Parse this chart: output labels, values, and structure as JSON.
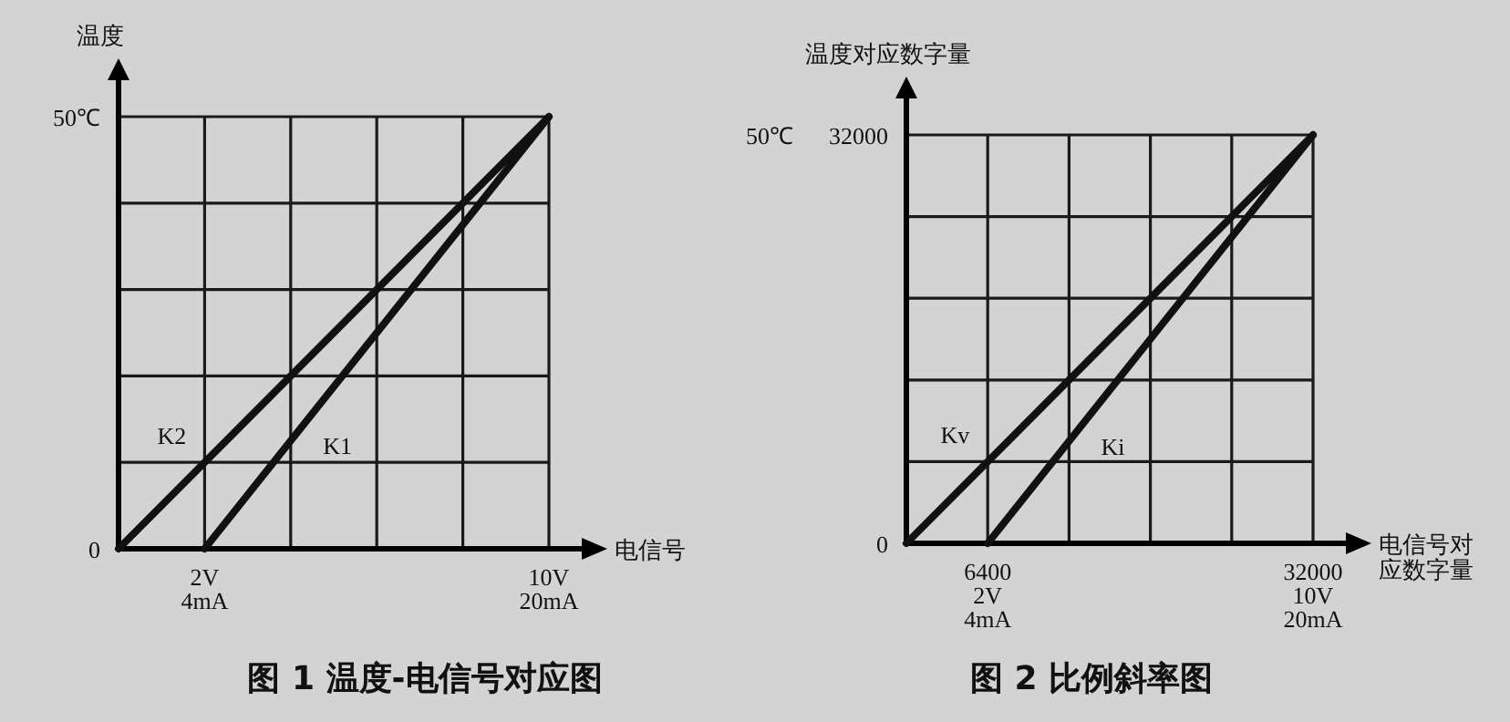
{
  "chart_data": [
    {
      "type": "line",
      "title": "图 1   温度-电信号对应图",
      "xlabel": "电信号",
      "ylabel": "温度",
      "xlim": [
        0,
        10
      ],
      "ylim": [
        0,
        50
      ],
      "xticks": [
        {
          "value": 0,
          "label": null
        },
        {
          "value": 2,
          "label": "2V"
        },
        {
          "value": 4,
          "label": null
        },
        {
          "value": 6,
          "label": null
        },
        {
          "value": 8,
          "label": null
        },
        {
          "value": 10,
          "label": "10V"
        }
      ],
      "x2lim": [
        0,
        20
      ],
      "x2ticks": [
        {
          "value": 4,
          "label": "4mA"
        },
        {
          "value": 20,
          "label": "20mA"
        }
      ],
      "yticks": [
        0,
        {
          "value": 10,
          "label": null
        },
        {
          "value": 20,
          "label": null
        },
        {
          "value": 30,
          "label": null
        },
        {
          "value": 40,
          "label": null
        },
        {
          "value": 50,
          "label": "50℃"
        }
      ],
      "grid": true,
      "line_style": "solid",
      "marker": "none",
      "series": [
        {
          "name": "K1",
          "color": "#111111",
          "x": [
            2,
            10
          ],
          "values": [
            0,
            50
          ]
        },
        {
          "name": "K2",
          "color": "#111111",
          "x": [
            0,
            10
          ],
          "values": [
            0,
            50
          ]
        }
      ]
    },
    {
      "type": "line",
      "title": "图 2   比例斜率图",
      "xlabel": "电信号对应数字量",
      "ylabel": "温度对应数字量",
      "xlim": [
        0,
        32000
      ],
      "ylim": [
        0,
        32000
      ],
      "xticks": [
        {
          "value": 0,
          "label": null
        },
        {
          "value": 6400,
          "label": "6400"
        },
        {
          "value": 12800,
          "label": null
        },
        {
          "value": 19200,
          "label": null
        },
        {
          "value": 25600,
          "label": null
        },
        {
          "value": 32000,
          "label": "32000"
        }
      ],
      "x2lim": [
        0,
        10
      ],
      "x2ticks": [
        {
          "value": 2,
          "label": "2V"
        },
        {
          "value": 10,
          "label": "10V"
        }
      ],
      "annotations": [
        "4mA",
        "20mA",
        "50℃"
      ],
      "yticks": [
        0,
        {
          "value": 6400,
          "label": null
        },
        {
          "value": 12800,
          "label": null
        },
        {
          "value": 19200,
          "label": null
        },
        {
          "value": 25600,
          "label": null
        },
        {
          "value": 32000,
          "label": "32000"
        }
      ],
      "grid": true,
      "line_style": "solid",
      "marker": "none",
      "series": [
        {
          "name": "Ki",
          "color": "#111111",
          "x": [
            6400,
            32000
          ],
          "values": [
            0,
            32000
          ]
        },
        {
          "name": "Kv",
          "color": "#111111",
          "x": [
            0,
            32000
          ],
          "values": [
            0,
            32000
          ]
        }
      ]
    }
  ]
}
